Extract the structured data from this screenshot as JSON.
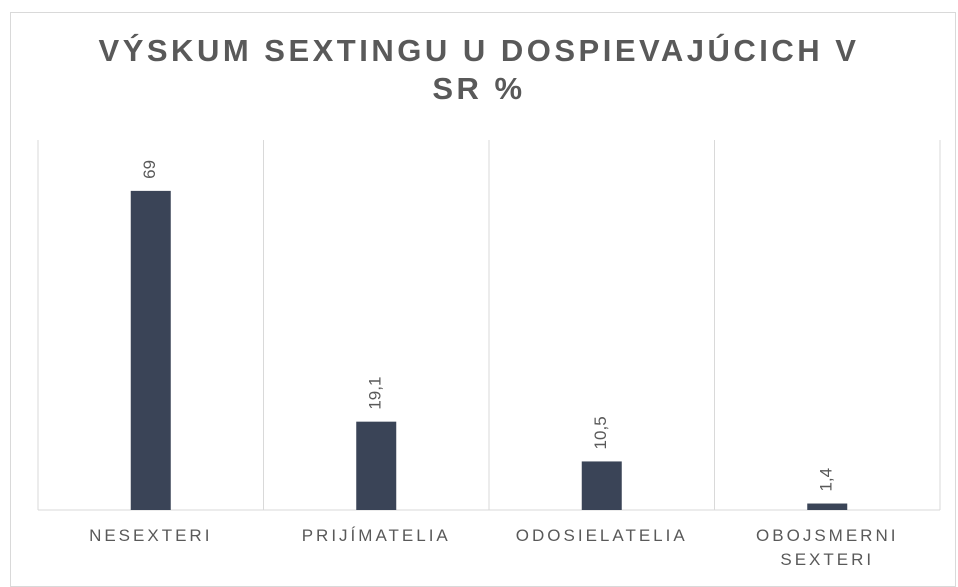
{
  "chart_data": {
    "type": "bar",
    "title": "VÝSKUM SEXTINGU U DOSPIEVAJÚCICH V SR %",
    "categories": [
      "NESEXTERI",
      "PRIJÍMATELIA",
      "ODOSIELATELIA",
      "OBOJSMERNI SEXTERI"
    ],
    "values": [
      69,
      19.1,
      10.5,
      1.4
    ],
    "value_labels": [
      "69",
      "19,1",
      "10,5",
      "1,4"
    ],
    "color": "#3a4457",
    "ylim": [
      0,
      80
    ],
    "grid": true
  }
}
